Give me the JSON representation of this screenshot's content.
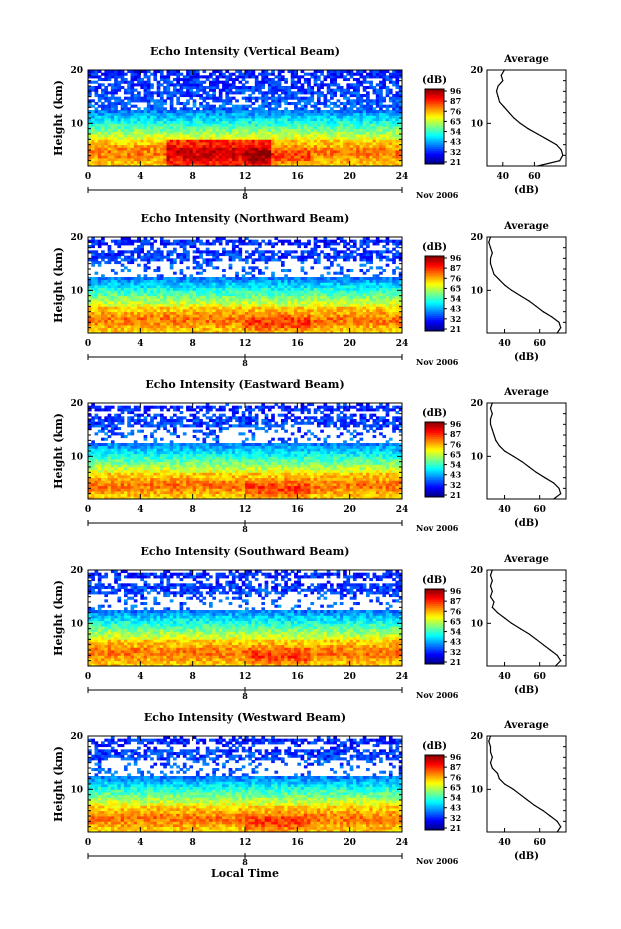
{
  "figure": {
    "ylabel": "Height (km)",
    "xlabel": "Local Time",
    "date_label": "Nov 2006",
    "day_marker": "8",
    "colorbar_label": "(dB)",
    "colorbar_ticks": [
      "96",
      "87",
      "76",
      "65",
      "54",
      "43",
      "32",
      "21"
    ],
    "avg_title": "Average",
    "avg_xlabel": "(dB)"
  },
  "chart_data": [
    {
      "type": "heatmap",
      "title": "Echo Intensity (Vertical Beam)",
      "xlabel": "",
      "ylabel": "Height (km)",
      "x_ticks": [
        0,
        4,
        8,
        12,
        16,
        20,
        24
      ],
      "xlim": [
        0,
        24
      ],
      "y_ticks": [
        10,
        20
      ],
      "ylim": [
        2,
        20
      ],
      "colorbar": {
        "label": "(dB)",
        "ticks": [
          96,
          87,
          76,
          65,
          54,
          43,
          32,
          21
        ]
      },
      "average_profile": {
        "title": "Average",
        "xlabel": "(dB)",
        "x_ticks": [
          40,
          60
        ],
        "xlim": [
          30,
          80
        ],
        "ylim": [
          2,
          20
        ],
        "height": [
          2,
          3,
          4,
          5,
          6,
          7,
          8,
          9,
          10,
          11,
          12,
          13,
          14,
          15,
          16,
          17,
          18,
          19,
          20
        ],
        "value": [
          62,
          76,
          78,
          77,
          74,
          68,
          62,
          56,
          51,
          47,
          44,
          41,
          38,
          37,
          36,
          37,
          40,
          39,
          41
        ]
      }
    },
    {
      "type": "heatmap",
      "title": "Echo Intensity (Northward Beam)",
      "xlabel": "",
      "ylabel": "Height (km)",
      "x_ticks": [
        0,
        4,
        8,
        12,
        16,
        20,
        24
      ],
      "xlim": [
        0,
        24
      ],
      "y_ticks": [
        10,
        20
      ],
      "ylim": [
        2,
        20
      ],
      "colorbar": {
        "label": "(dB)",
        "ticks": [
          96,
          87,
          76,
          65,
          54,
          43,
          32,
          21
        ]
      },
      "average_profile": {
        "title": "Average",
        "xlabel": "(dB)",
        "x_ticks": [
          40,
          60
        ],
        "xlim": [
          30,
          75
        ],
        "ylim": [
          2,
          20
        ],
        "height": [
          2,
          3,
          4,
          5,
          6,
          7,
          8,
          9,
          10,
          11,
          12,
          13,
          14,
          15,
          16,
          17,
          18,
          19,
          20
        ],
        "value": [
          70,
          72,
          71,
          67,
          62,
          58,
          54,
          49,
          44,
          40,
          37,
          34,
          33,
          32,
          32,
          33,
          32,
          31,
          32
        ]
      }
    },
    {
      "type": "heatmap",
      "title": "Echo Intensity (Eastward Beam)",
      "xlabel": "",
      "ylabel": "Height (km)",
      "x_ticks": [
        0,
        4,
        8,
        12,
        16,
        20,
        24
      ],
      "xlim": [
        0,
        24
      ],
      "y_ticks": [
        10,
        20
      ],
      "ylim": [
        2,
        20
      ],
      "colorbar": {
        "label": "(dB)",
        "ticks": [
          96,
          87,
          76,
          65,
          54,
          43,
          32,
          21
        ]
      },
      "average_profile": {
        "title": "Average",
        "xlabel": "(dB)",
        "x_ticks": [
          40,
          60
        ],
        "xlim": [
          30,
          75
        ],
        "ylim": [
          2,
          20
        ],
        "height": [
          2,
          3,
          4,
          5,
          6,
          7,
          8,
          9,
          10,
          11,
          12,
          13,
          14,
          15,
          16,
          17,
          18,
          19,
          20
        ],
        "value": [
          68,
          72,
          71,
          68,
          63,
          58,
          54,
          50,
          45,
          40,
          37,
          35,
          34,
          33,
          32,
          32,
          33,
          32,
          33
        ]
      }
    },
    {
      "type": "heatmap",
      "title": "Echo Intensity (Southward Beam)",
      "xlabel": "",
      "ylabel": "Height (km)",
      "x_ticks": [
        0,
        4,
        8,
        12,
        16,
        20,
        24
      ],
      "xlim": [
        0,
        24
      ],
      "y_ticks": [
        10,
        20
      ],
      "ylim": [
        2,
        20
      ],
      "colorbar": {
        "label": "(dB)",
        "ticks": [
          96,
          87,
          76,
          65,
          54,
          43,
          32,
          21
        ]
      },
      "average_profile": {
        "title": "Average",
        "xlabel": "(dB)",
        "x_ticks": [
          40,
          60
        ],
        "xlim": [
          30,
          75
        ],
        "ylim": [
          2,
          20
        ],
        "height": [
          2,
          3,
          4,
          5,
          6,
          7,
          8,
          9,
          10,
          11,
          12,
          13,
          14,
          15,
          16,
          17,
          18,
          19,
          20
        ],
        "value": [
          69,
          72,
          70,
          66,
          62,
          58,
          54,
          49,
          44,
          40,
          36,
          33,
          34,
          32,
          33,
          32,
          33,
          32,
          33
        ]
      }
    },
    {
      "type": "heatmap",
      "title": "Echo Intensity (Westward Beam)",
      "xlabel": "Local Time",
      "ylabel": "Height (km)",
      "x_ticks": [
        0,
        4,
        8,
        12,
        16,
        20,
        24
      ],
      "xlim": [
        0,
        24
      ],
      "y_ticks": [
        10,
        20
      ],
      "ylim": [
        2,
        20
      ],
      "colorbar": {
        "label": "(dB)",
        "ticks": [
          96,
          87,
          76,
          65,
          54,
          43,
          32,
          21
        ]
      },
      "average_profile": {
        "title": "Average",
        "xlabel": "(dB)",
        "x_ticks": [
          40,
          60
        ],
        "xlim": [
          30,
          75
        ],
        "ylim": [
          2,
          20
        ],
        "height": [
          2,
          3,
          4,
          5,
          6,
          7,
          8,
          9,
          10,
          11,
          12,
          13,
          14,
          15,
          16,
          17,
          18,
          19,
          20
        ],
        "value": [
          70,
          72,
          70,
          66,
          62,
          57,
          53,
          49,
          45,
          40,
          37,
          36,
          33,
          32,
          33,
          32,
          32,
          31,
          32
        ]
      }
    }
  ]
}
